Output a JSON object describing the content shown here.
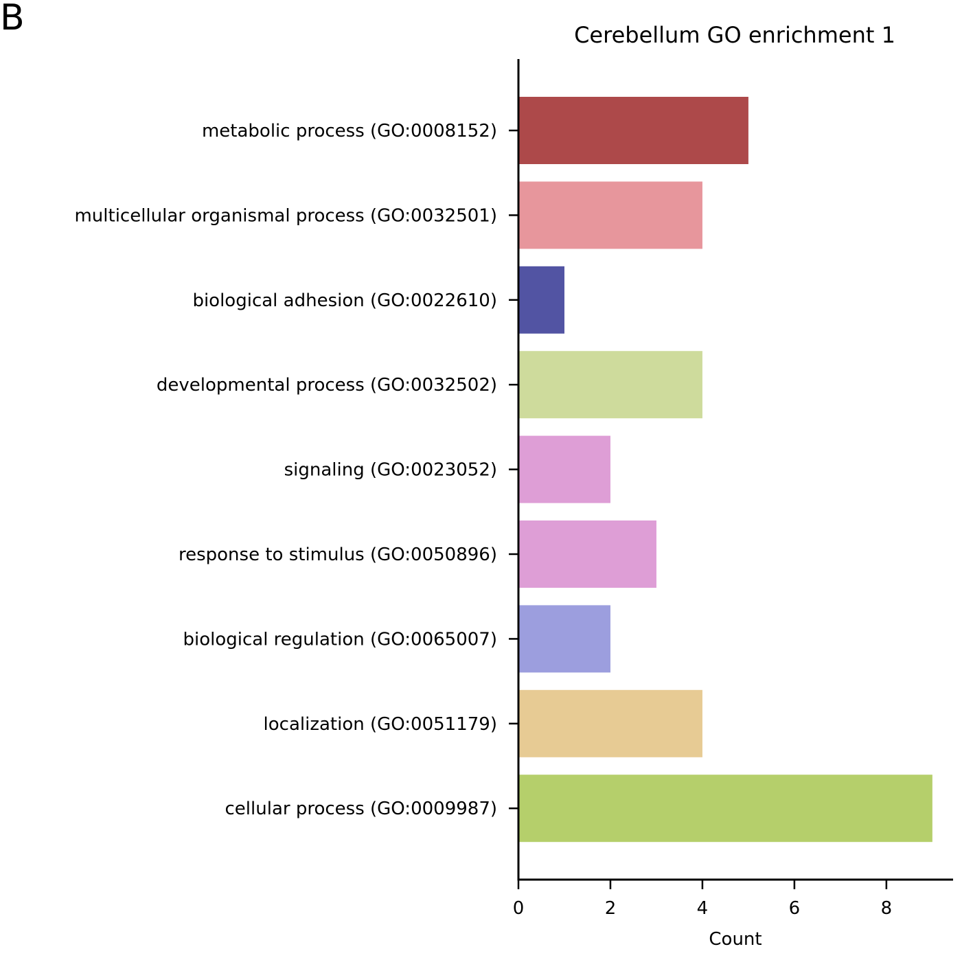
{
  "panel_label": "B",
  "chart_data": {
    "type": "bar",
    "orientation": "horizontal",
    "title": "Cerebellum GO enrichment 1",
    "xlabel": "Count",
    "ylabel": "",
    "xlim": [
      0,
      9.45
    ],
    "xticks": [
      0,
      2,
      4,
      6,
      8
    ],
    "xtick_labels": [
      "0",
      "2",
      "4",
      "6",
      "8"
    ],
    "grid": false,
    "categories": [
      "metabolic process (GO:0008152)",
      "multicellular organismal process (GO:0032501)",
      "biological adhesion (GO:0022610)",
      "developmental process (GO:0032502)",
      "signaling (GO:0023052)",
      "response to stimulus (GO:0050896)",
      "biological regulation (GO:0065007)",
      "localization (GO:0051179)",
      "cellular process (GO:0009987)"
    ],
    "values": [
      5,
      4,
      1,
      4,
      2,
      3,
      2,
      4,
      9
    ],
    "colors": [
      "#ad494a",
      "#e7969c",
      "#5254a3",
      "#cedb9c",
      "#de9ed6",
      "#de9ed6",
      "#9c9ede",
      "#e7cb94",
      "#b5cf6b"
    ]
  }
}
